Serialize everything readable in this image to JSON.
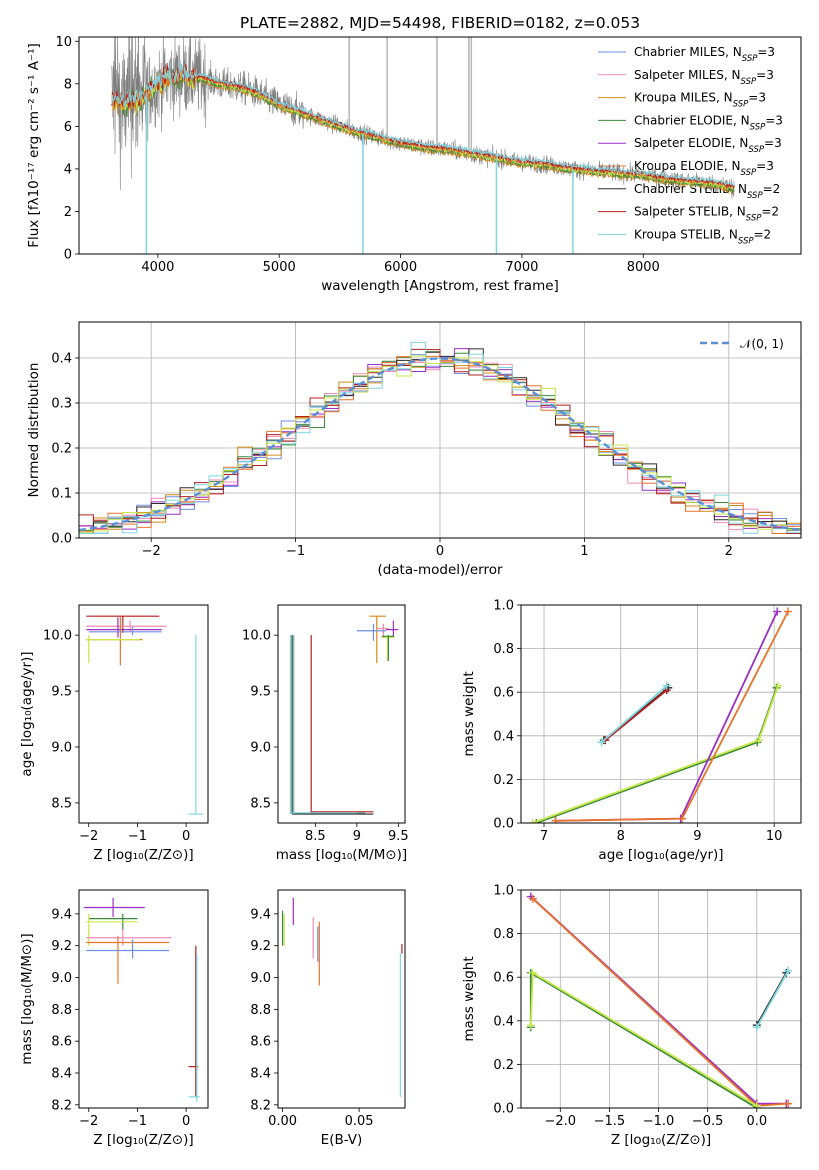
{
  "figure": {
    "title": "PLATE=2882, MJD=54498, FIBERID=0182, z=0.053"
  },
  "colors": {
    "Chabrier MILES": "#6f8fe0",
    "Salpeter MILES": "#f08ab8",
    "Kroupa MILES": "#d8891a",
    "Chabrier ELODIE": "#3b8a3b",
    "Salpeter ELODIE": "#9b2fc4",
    "Kroupa ELODIE": "#e8742a",
    "Chabrier STELIB": "#2b2b2b",
    "Salpeter STELIB": "#b21f1f",
    "Kroupa STELIB": "#7fd6e0",
    "data": "#7f7f7f",
    "lime": "#c8e84a",
    "teal": "#5fb8a8",
    "normal": "#5b8fd6",
    "grid": "#b0b0b0"
  },
  "chart_data": [
    {
      "id": "spectrum",
      "type": "line",
      "title": "PLATE=2882, MJD=54498, FIBERID=0182, z=0.053",
      "xlabel": "wavelength [Angstrom, rest frame]",
      "ylabel": "Flux [fλ10⁻¹⁷ erg cm⁻² s⁻¹ A⁻¹]",
      "xlim": [
        3350,
        9300
      ],
      "ylim": [
        0,
        10.2
      ],
      "xticks": [
        4000,
        5000,
        6000,
        7000,
        8000
      ],
      "yticks": [
        0,
        2,
        4,
        6,
        8,
        10
      ],
      "grid": false,
      "legend_position": "right",
      "legend": [
        {
          "label": "Chabrier MILES, N",
          "sub": "SSP",
          "suffix": "=3"
        },
        {
          "label": "Salpeter MILES, N",
          "sub": "SSP",
          "suffix": "=3"
        },
        {
          "label": "Kroupa MILES, N",
          "sub": "SSP",
          "suffix": "=3"
        },
        {
          "label": "Chabrier ELODIE, N",
          "sub": "SSP",
          "suffix": "=3"
        },
        {
          "label": "Salpeter ELODIE, N",
          "sub": "SSP",
          "suffix": "=3"
        },
        {
          "label": "Kroupa ELODIE, N",
          "sub": "SSP",
          "suffix": "=3"
        },
        {
          "label": "Chabrier STELIB, N",
          "sub": "SSP",
          "suffix": "=2"
        },
        {
          "label": "Salpeter STELIB, N",
          "sub": "SSP",
          "suffix": "=2"
        },
        {
          "label": "Kroupa STELIB, N",
          "sub": "SSP",
          "suffix": "=2"
        }
      ],
      "continuum": {
        "x": [
          3620,
          3700,
          3800,
          3900,
          4000,
          4100,
          4200,
          4300,
          4400,
          4500,
          4600,
          4700,
          4800,
          4900,
          5000,
          5200,
          5400,
          5600,
          5800,
          6000,
          6200,
          6400,
          6600,
          6800,
          7000,
          7200,
          7400,
          7600,
          7800,
          8000,
          8200,
          8400,
          8600,
          8750
        ],
        "y": [
          7.3,
          7.0,
          7.2,
          7.5,
          8.0,
          8.3,
          8.4,
          8.3,
          8.2,
          8.0,
          7.9,
          7.8,
          7.6,
          7.3,
          7.0,
          6.6,
          6.2,
          5.8,
          5.5,
          5.2,
          5.0,
          4.9,
          4.7,
          4.5,
          4.3,
          4.2,
          4.0,
          3.9,
          3.8,
          3.7,
          3.5,
          3.4,
          3.3,
          3.1
        ]
      },
      "model_dips": [
        {
          "x": 3905,
          "y": 0.0
        },
        {
          "x": 5690,
          "y": 0.0
        },
        {
          "x": 6790,
          "y": 0.0
        },
        {
          "x": 7420,
          "y": 0.0
        }
      ]
    },
    {
      "id": "residuals",
      "type": "histogram",
      "xlabel": "(data-model)/error",
      "ylabel": "Normed distribution",
      "xlim": [
        -2.5,
        2.5
      ],
      "ylim": [
        0,
        0.48
      ],
      "xticks": [
        -2,
        -1,
        0,
        1,
        2
      ],
      "yticks": [
        0.0,
        0.1,
        0.2,
        0.3,
        0.4
      ],
      "grid": true,
      "legend_position": "top-right",
      "legend": [
        "𝒩(0, 1)"
      ],
      "bin_width": 0.1
    },
    {
      "id": "age-vs-Z",
      "type": "errorbar",
      "xlabel": "Z [log₁₀(Z/Z⊙)]",
      "ylabel": "age  [log₁₀(age/yr)]",
      "xlim": [
        -2.2,
        0.45
      ],
      "ylim": [
        8.32,
        10.27
      ],
      "xticks": [
        -2,
        -1,
        0
      ],
      "yticks": [
        8.5,
        9.0,
        9.5,
        10.0
      ],
      "grid": false,
      "series": [
        {
          "name": "Salpeter STELIB",
          "x": [
            -2.05,
            -0.55
          ],
          "y": [
            10.17,
            10.17
          ],
          "ex": [
            -1.3,
            -1.3
          ],
          "ey": [
            10.02,
            10.17
          ]
        },
        {
          "name": "Salpeter MILES",
          "x": [
            -2.05,
            -0.4
          ],
          "y": [
            10.08,
            10.08
          ],
          "ex": [
            -1.15,
            -1.15
          ],
          "ey": [
            10.03,
            10.13
          ]
        },
        {
          "name": "Salpeter ELODIE",
          "x": [
            -2.05,
            -0.5
          ],
          "y": [
            10.05,
            10.05
          ],
          "ex": [
            -1.4,
            -1.4
          ],
          "ey": [
            9.98,
            10.16
          ]
        },
        {
          "name": "Chabrier MILES",
          "x": [
            -2.0,
            -0.5
          ],
          "y": [
            10.03,
            10.03
          ],
          "ex": [
            -1.1,
            -1.1
          ],
          "ey": [
            10.0,
            10.08
          ]
        },
        {
          "name": "Kroupa ELODIE",
          "x": [
            -2.05,
            -0.9
          ],
          "y": [
            9.96,
            9.96
          ],
          "ex": [
            -1.35,
            -1.35
          ],
          "ey": [
            9.73,
            10.16
          ]
        },
        {
          "name": "lime",
          "x": [
            -2.05,
            -0.95
          ],
          "y": [
            9.96,
            9.96
          ],
          "ex": [
            -2.0,
            -2.0
          ],
          "ey": [
            9.75,
            10.0
          ]
        },
        {
          "name": "Kroupa STELIB",
          "x": [
            0.2,
            0.2
          ],
          "y": [
            8.4,
            10.0
          ],
          "ex": [
            0.05,
            0.35
          ],
          "ey": [
            8.4,
            8.4
          ]
        }
      ]
    },
    {
      "id": "age-vs-mass",
      "type": "errorbar",
      "xlabel": "mass [log₁₀(M/M⊙)]",
      "ylabel": "",
      "xlim": [
        8.05,
        9.58
      ],
      "ylim": [
        8.32,
        10.27
      ],
      "xticks": [
        8.5,
        9.0,
        9.5
      ],
      "yticks": [
        8.5,
        9.0,
        9.5,
        10.0
      ],
      "grid": false,
      "series": [
        {
          "name": "Salpeter STELIB",
          "x": [
            8.45,
            8.45
          ],
          "y": [
            8.4,
            10.0
          ],
          "ex": [
            8.45,
            9.2
          ],
          "ey": [
            8.42,
            8.42
          ]
        },
        {
          "name": "Chabrier STELIB",
          "x": [
            8.22,
            8.22
          ],
          "y": [
            8.4,
            10.0
          ],
          "ex": [
            8.22,
            9.2
          ],
          "ey": [
            8.4,
            8.4
          ]
        },
        {
          "name": "teal",
          "x": [
            8.24,
            8.24
          ],
          "y": [
            8.4,
            10.0
          ],
          "ex": [
            8.24,
            9.1
          ],
          "ey": [
            8.41,
            8.41
          ]
        },
        {
          "name": "Kroupa STELIB",
          "x": [
            8.2,
            8.2
          ],
          "y": [
            8.4,
            10.0
          ],
          "ex": [
            8.2,
            9.0
          ],
          "ey": [
            8.41,
            8.41
          ]
        },
        {
          "name": "Kroupa MILES",
          "x": [
            9.15,
            9.35
          ],
          "y": [
            10.17,
            10.17
          ],
          "ex": [
            9.24,
            9.24
          ],
          "ey": [
            9.75,
            10.17
          ]
        },
        {
          "name": "Salpeter MILES",
          "x": [
            9.25,
            9.38
          ],
          "y": [
            10.06,
            10.06
          ],
          "ex": [
            9.32,
            9.32
          ],
          "ey": [
            9.98,
            10.1
          ]
        },
        {
          "name": "Chabrier MILES",
          "x": [
            9.0,
            9.35
          ],
          "y": [
            10.04,
            10.04
          ],
          "ex": [
            9.2,
            9.2
          ],
          "ey": [
            9.95,
            10.1
          ]
        },
        {
          "name": "Salpeter ELODIE",
          "x": [
            9.35,
            9.5
          ],
          "y": [
            10.05,
            10.05
          ],
          "ex": [
            9.44,
            9.44
          ],
          "ey": [
            9.98,
            10.13
          ]
        },
        {
          "name": "lime",
          "x": [
            9.3,
            9.45
          ],
          "y": [
            9.98,
            9.98
          ],
          "ex": [
            9.37,
            9.37
          ],
          "ey": [
            9.77,
            9.99
          ]
        },
        {
          "name": "Chabrier ELODIE",
          "x": [
            9.3,
            9.45
          ],
          "y": [
            9.99,
            9.99
          ],
          "ex": [
            9.38,
            9.38
          ],
          "ey": [
            9.77,
            10.0
          ]
        }
      ]
    },
    {
      "id": "mass-weight-vs-age",
      "type": "line",
      "xlabel": "age  [log₁₀(age/yr)]",
      "ylabel": "mass weight",
      "xlim": [
        6.7,
        10.35
      ],
      "ylim": [
        0,
        1.0
      ],
      "xticks": [
        7,
        8,
        9,
        10
      ],
      "yticks": [
        0.0,
        0.2,
        0.4,
        0.6,
        0.8,
        1.0
      ],
      "grid": true,
      "series": [
        {
          "name": "Chabrier STELIB",
          "x": [
            7.78,
            8.62
          ],
          "y": [
            0.38,
            0.62
          ]
        },
        {
          "name": "Salpeter STELIB",
          "x": [
            7.8,
            8.6
          ],
          "y": [
            0.38,
            0.61
          ]
        },
        {
          "name": "Kroupa STELIB",
          "x": [
            7.75,
            8.6
          ],
          "y": [
            0.37,
            0.63
          ]
        },
        {
          "name": "Chabrier ELODIE",
          "x": [
            6.9,
            9.78,
            10.03
          ],
          "y": [
            0.0,
            0.37,
            0.62
          ]
        },
        {
          "name": "lime",
          "x": [
            6.85,
            9.8,
            10.05
          ],
          "y": [
            0.0,
            0.38,
            0.63
          ]
        },
        {
          "name": "Salpeter ELODIE",
          "x": [
            7.15,
            8.78,
            10.04
          ],
          "y": [
            0.01,
            0.02,
            0.97
          ]
        },
        {
          "name": "Kroupa ELODIE",
          "x": [
            7.15,
            8.8,
            10.18
          ],
          "y": [
            0.01,
            0.02,
            0.97
          ]
        }
      ]
    },
    {
      "id": "mass-vs-Z",
      "type": "errorbar",
      "xlabel": "Z [log₁₀(Z/Z⊙)]",
      "ylabel": "mass [log₁₀(M/M⊙)]",
      "xlim": [
        -2.2,
        0.45
      ],
      "ylim": [
        8.18,
        9.55
      ],
      "xticks": [
        -2,
        -1,
        0
      ],
      "yticks": [
        8.2,
        8.4,
        8.6,
        8.8,
        9.0,
        9.2,
        9.4
      ],
      "grid": false,
      "series": [
        {
          "name": "Salpeter ELODIE",
          "x": [
            -2.1,
            -0.85
          ],
          "y": [
            9.44,
            9.44
          ],
          "ex": [
            -1.5,
            -1.5
          ],
          "ey": [
            9.38,
            9.5
          ]
        },
        {
          "name": "Chabrier ELODIE",
          "x": [
            -2.0,
            -1.0
          ],
          "y": [
            9.37,
            9.37
          ],
          "ex": [
            -1.3,
            -1.3
          ],
          "ey": [
            9.3,
            9.4
          ]
        },
        {
          "name": "lime",
          "x": [
            -2.05,
            -1.0
          ],
          "y": [
            9.35,
            9.35
          ],
          "ex": [
            -2.0,
            -2.0
          ],
          "ey": [
            9.2,
            9.4
          ]
        },
        {
          "name": "Salpeter MILES",
          "x": [
            -2.05,
            -0.3
          ],
          "y": [
            9.25,
            9.25
          ],
          "ex": [
            -1.3,
            -1.3
          ],
          "ey": [
            9.2,
            9.3
          ]
        },
        {
          "name": "Kroupa ELODIE",
          "x": [
            -2.05,
            -0.35
          ],
          "y": [
            9.22,
            9.22
          ],
          "ex": [
            -1.4,
            -1.4
          ],
          "ey": [
            8.96,
            9.26
          ]
        },
        {
          "name": "Chabrier MILES",
          "x": [
            -2.05,
            -0.35
          ],
          "y": [
            9.17,
            9.17
          ],
          "ex": [
            -1.1,
            -1.1
          ],
          "ey": [
            9.12,
            9.24
          ]
        },
        {
          "name": "Salpeter STELIB",
          "x": [
            0.05,
            0.25
          ],
          "y": [
            8.44,
            8.44
          ],
          "ex": [
            0.2,
            0.2
          ],
          "ey": [
            8.25,
            9.2
          ]
        },
        {
          "name": "Kroupa STELIB",
          "x": [
            0.05,
            0.28
          ],
          "y": [
            8.25,
            8.25
          ],
          "ex": [
            0.22,
            0.22
          ],
          "ey": [
            8.22,
            9.15
          ]
        }
      ]
    },
    {
      "id": "mass-vs-ebv",
      "type": "errorbar",
      "xlabel": "E(B-V)",
      "ylabel": "",
      "xlim": [
        -0.003,
        0.08
      ],
      "ylim": [
        8.18,
        9.55
      ],
      "xticks": [
        0.0,
        0.05
      ],
      "xticklabels": [
        "0.00",
        "0.05"
      ],
      "yticks": [
        8.2,
        8.4,
        8.6,
        8.8,
        9.0,
        9.2,
        9.4
      ],
      "grid": false,
      "series": [
        {
          "name": "Salpeter ELODIE",
          "ex": [
            0.007,
            0.007
          ],
          "ey": [
            9.33,
            9.5
          ]
        },
        {
          "name": "Chabrier ELODIE",
          "ex": [
            0.0,
            0.0
          ],
          "ey": [
            9.2,
            9.42
          ]
        },
        {
          "name": "lime",
          "ex": [
            0.001,
            0.001
          ],
          "ey": [
            9.2,
            9.4
          ]
        },
        {
          "name": "Salpeter MILES",
          "ex": [
            0.02,
            0.02
          ],
          "ey": [
            9.12,
            9.38
          ]
        },
        {
          "name": "Kroupa ELODIE",
          "ex": [
            0.024,
            0.024
          ],
          "ey": [
            8.95,
            9.35
          ]
        },
        {
          "name": "Chabrier MILES",
          "ex": [
            0.023,
            0.023
          ],
          "ey": [
            9.1,
            9.32
          ]
        },
        {
          "name": "Salpeter STELIB",
          "ex": [
            0.078,
            0.078
          ],
          "ey": [
            9.15,
            9.21
          ]
        },
        {
          "name": "Kroupa STELIB",
          "ex": [
            0.077,
            0.077
          ],
          "ey": [
            8.25,
            9.15
          ]
        }
      ]
    },
    {
      "id": "mass-weight-vs-Z",
      "type": "line",
      "xlabel": "Z [log₁₀(Z/Z⊙)]",
      "ylabel": "mass weight",
      "xlim": [
        -2.4,
        0.45
      ],
      "ylim": [
        0,
        1.0
      ],
      "xticks": [
        -2.0,
        -1.5,
        -1.0,
        -0.5,
        0.0
      ],
      "xticklabels": [
        "−2.0",
        "−1.5",
        "−1.0",
        "−0.5",
        "0.0"
      ],
      "yticks": [
        0.0,
        0.2,
        0.4,
        0.6,
        0.8,
        1.0
      ],
      "grid": true,
      "series": [
        {
          "name": "Salpeter ELODIE",
          "x": [
            -2.3,
            0.0,
            0.3
          ],
          "y": [
            0.97,
            0.02,
            0.02
          ]
        },
        {
          "name": "Kroupa ELODIE",
          "x": [
            -2.28,
            0.0,
            0.32
          ],
          "y": [
            0.96,
            0.01,
            0.02
          ]
        },
        {
          "name": "Chabrier ELODIE",
          "x": [
            -2.3,
            -2.3,
            0.0
          ],
          "y": [
            0.37,
            0.62,
            0.0
          ]
        },
        {
          "name": "lime",
          "x": [
            -2.3,
            -2.28,
            0.0
          ],
          "y": [
            0.38,
            0.62,
            0.01
          ]
        },
        {
          "name": "Chabrier STELIB",
          "x": [
            0.0,
            0.3
          ],
          "y": [
            0.38,
            0.62
          ]
        },
        {
          "name": "Kroupa STELIB",
          "x": [
            0.0,
            0.32
          ],
          "y": [
            0.37,
            0.63
          ]
        }
      ]
    }
  ]
}
